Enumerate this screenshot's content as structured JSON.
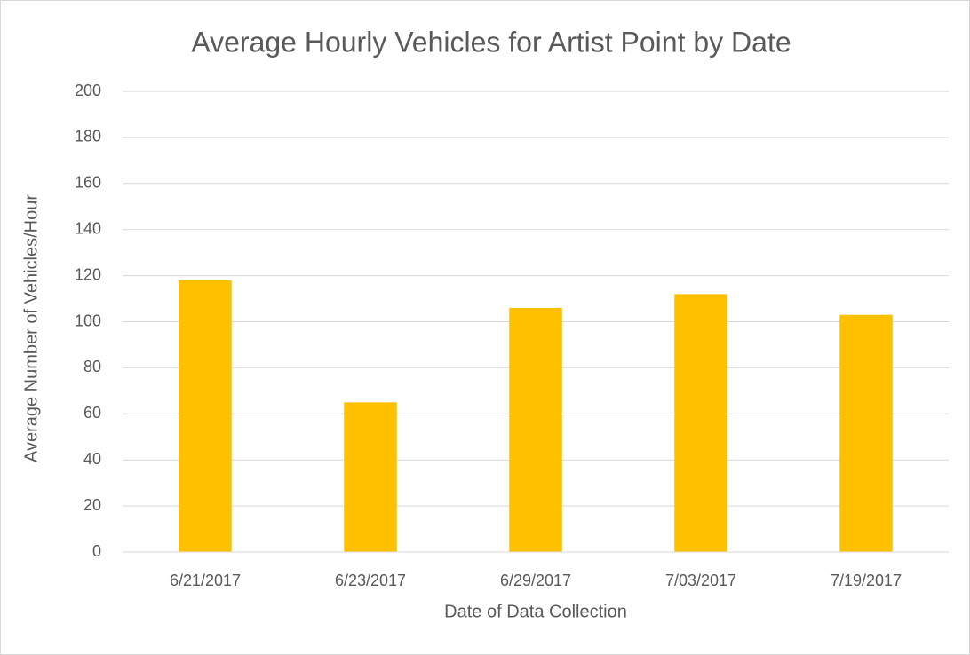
{
  "chart_data": {
    "type": "bar",
    "title": "Average Hourly Vehicles for Artist Point by Date",
    "x_label": "Date of Data Collection",
    "y_label": "Average Number of Vehicles/Hour",
    "categories": [
      "6/21/2017",
      "6/23/2017",
      "6/29/2017",
      "7/03/2017",
      "7/19/2017"
    ],
    "values": [
      118,
      65,
      106,
      112,
      103
    ],
    "color": "#ffc000",
    "ylim": [
      0,
      200
    ],
    "yticks": [
      0,
      20,
      40,
      60,
      80,
      100,
      120,
      140,
      160,
      180,
      200
    ],
    "grid": true
  }
}
